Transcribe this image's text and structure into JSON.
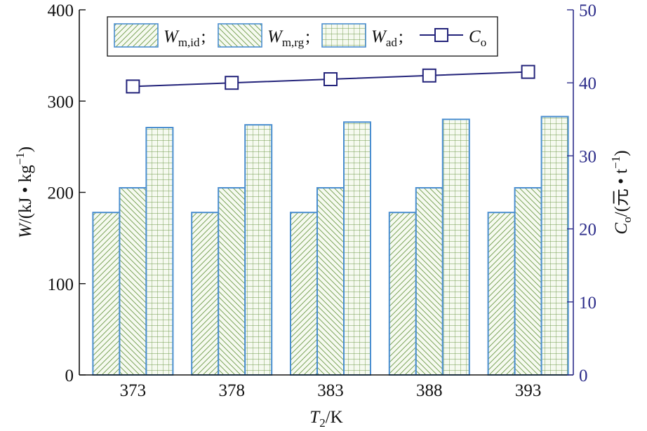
{
  "chart_data": {
    "type": "bar",
    "x_label": {
      "symbol": "T",
      "sub": "2",
      "unit": "/K"
    },
    "y_left_label": {
      "symbol": "W",
      "unit_pre": "/(kJ • kg",
      "unit_sup": "−1",
      "unit_post": ")"
    },
    "y_right_label": {
      "symbol": "C",
      "sub": "o",
      "unit_pre": "/(元 • t",
      "unit_sup": "−1",
      "unit_post": ")"
    },
    "categories": [
      "373",
      "378",
      "383",
      "388",
      "393"
    ],
    "y_left_range": [
      0,
      400
    ],
    "y_left_ticks": [
      "0",
      "100",
      "200",
      "300",
      "400"
    ],
    "y_right_range": [
      0,
      50
    ],
    "y_right_ticks": [
      "0",
      "10",
      "20",
      "30",
      "40",
      "50"
    ],
    "series": [
      {
        "name": "W_m,id",
        "legend": {
          "symbol": "W",
          "sub": "m,id",
          "sep": ";"
        },
        "kind": "bar",
        "axis": "left",
        "pattern": "diag-up",
        "values": [
          178,
          178,
          178,
          178,
          178
        ]
      },
      {
        "name": "W_m,rg",
        "legend": {
          "symbol": "W",
          "sub": "m,rg",
          "sep": ";"
        },
        "kind": "bar",
        "axis": "left",
        "pattern": "diag-down",
        "values": [
          205,
          205,
          205,
          205,
          205
        ]
      },
      {
        "name": "W_ad",
        "legend": {
          "symbol": "W",
          "sub": "ad",
          "sep": ";"
        },
        "kind": "bar",
        "axis": "left",
        "pattern": "grid",
        "values": [
          271,
          274,
          277,
          280,
          283
        ]
      },
      {
        "name": "C_o",
        "legend": {
          "symbol": "C",
          "sub": "o",
          "sep": ""
        },
        "kind": "line",
        "axis": "right",
        "marker": "square",
        "values": [
          39.5,
          40.0,
          40.5,
          41.0,
          41.5
        ]
      }
    ],
    "legend_position": "top",
    "grid": false
  },
  "colors": {
    "bar_border": "#4a8ed0",
    "hatch": "#6f9a4a",
    "bar_fill": "#f6faf0",
    "line": "#23237a",
    "right_axis": "#2d2d8a",
    "axis": "#111111"
  }
}
